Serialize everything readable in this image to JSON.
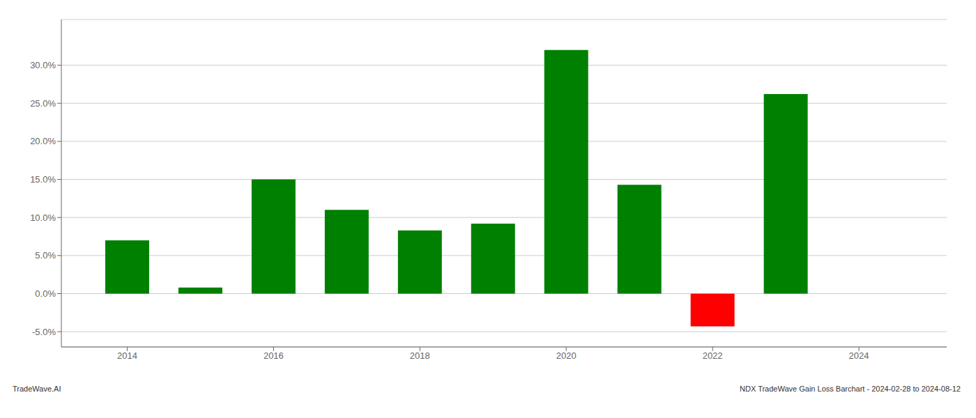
{
  "chart_data": {
    "type": "bar",
    "x": [
      2014,
      2015,
      2016,
      2017,
      2018,
      2019,
      2020,
      2021,
      2022,
      2023,
      2024
    ],
    "values": [
      0.07,
      0.008,
      0.15,
      0.11,
      0.083,
      0.092,
      0.32,
      0.143,
      -0.043,
      0.262,
      0.0
    ],
    "colors": [
      "#008000",
      "#008000",
      "#008000",
      "#008000",
      "#008000",
      "#008000",
      "#008000",
      "#008000",
      "#ff0000",
      "#008000",
      "#008000"
    ],
    "xlim": [
      2013.1,
      2025.2
    ],
    "xticks": [
      2014,
      2016,
      2018,
      2020,
      2022,
      2024
    ],
    "ylim": [
      -0.07,
      0.36
    ],
    "yticks": [
      {
        "value": -0.05,
        "label": "-5.0%"
      },
      {
        "value": 0.0,
        "label": "0.0%"
      },
      {
        "value": 0.05,
        "label": "5.0%"
      },
      {
        "value": 0.1,
        "label": "10.0%"
      },
      {
        "value": 0.15,
        "label": "15.0%"
      },
      {
        "value": 0.2,
        "label": "20.0%"
      },
      {
        "value": 0.25,
        "label": "25.0%"
      },
      {
        "value": 0.3,
        "label": "30.0%"
      }
    ],
    "grid": true,
    "footer_left": "TradeWave.AI",
    "footer_right": "NDX TradeWave Gain Loss Barchart - 2024-02-28 to 2024-08-12"
  }
}
